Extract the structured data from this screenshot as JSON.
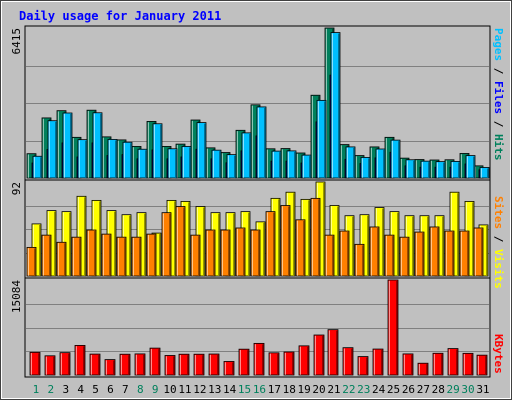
{
  "chart_data": [
    {
      "type": "bar",
      "title": "Daily usage for January 2011",
      "ymax_label": "6415",
      "ylim": [
        0,
        6415
      ],
      "legend": [
        {
          "text": "Pages",
          "color": "#00c0ff"
        },
        {
          "text": "Files",
          "color": "#0000ff"
        },
        {
          "text": "Hits",
          "color": "#00805c"
        }
      ],
      "legend_sep": "/",
      "categories": [
        "1",
        "2",
        "3",
        "4",
        "5",
        "6",
        "7",
        "8",
        "9",
        "10",
        "11",
        "12",
        "13",
        "14",
        "15",
        "16",
        "17",
        "18",
        "19",
        "20",
        "21",
        "22",
        "23",
        "24",
        "25",
        "26",
        "27",
        "28",
        "29",
        "30",
        "31"
      ],
      "weekend_days": [
        "1",
        "2",
        "8",
        "9",
        "15",
        "16",
        "22",
        "23",
        "29",
        "30"
      ],
      "series": [
        {
          "name": "Hits",
          "color": "#00805c",
          "values": [
            1040,
            2570,
            2880,
            1740,
            2900,
            1760,
            1630,
            1350,
            2420,
            1350,
            1450,
            2480,
            1290,
            1090,
            2040,
            3130,
            1250,
            1260,
            1070,
            3540,
            6415,
            1430,
            960,
            1330,
            1740,
            850,
            790,
            770,
            780,
            1050,
            520
          ]
        },
        {
          "name": "Files",
          "color": "#0000ff",
          "values": [
            640,
            1220,
            1500,
            900,
            1500,
            960,
            1000,
            820,
            1200,
            820,
            900,
            1230,
            820,
            650,
            1160,
            1800,
            720,
            720,
            640,
            2400,
            4400,
            800,
            620,
            860,
            1100,
            520,
            460,
            460,
            460,
            600,
            350
          ]
        },
        {
          "name": "Pages",
          "color": "#00c0ff",
          "values": [
            930,
            2450,
            2780,
            1640,
            2790,
            1650,
            1530,
            1230,
            2320,
            1250,
            1350,
            2370,
            1190,
            1000,
            1930,
            3040,
            1150,
            1160,
            980,
            3320,
            6220,
            1330,
            880,
            1240,
            1620,
            780,
            720,
            700,
            710,
            960,
            450
          ]
        }
      ]
    },
    {
      "type": "bar",
      "ymax_label": "92",
      "ylim": [
        0,
        92
      ],
      "legend": [
        {
          "text": "Sites",
          "color": "#ff8000"
        },
        {
          "text": "Visits",
          "color": "#ffff00"
        }
      ],
      "legend_sep": "/",
      "categories": [
        "1",
        "2",
        "3",
        "4",
        "5",
        "6",
        "7",
        "8",
        "9",
        "10",
        "11",
        "12",
        "13",
        "14",
        "15",
        "16",
        "17",
        "18",
        "19",
        "20",
        "21",
        "22",
        "23",
        "24",
        "25",
        "26",
        "27",
        "28",
        "29",
        "30",
        "31"
      ],
      "series": [
        {
          "name": "Visits",
          "color": "#ffff00",
          "values": [
            51,
            64,
            63,
            78,
            74,
            64,
            60,
            62,
            42,
            74,
            73,
            68,
            62,
            62,
            63,
            53,
            76,
            82,
            75,
            92,
            69,
            59,
            60,
            67,
            63,
            59,
            59,
            59,
            82,
            73,
            50
          ]
        },
        {
          "name": "Sites",
          "color": "#ff8000",
          "values": [
            28,
            40,
            33,
            38,
            45,
            41,
            38,
            38,
            41,
            62,
            68,
            40,
            45,
            45,
            47,
            45,
            63,
            69,
            55,
            76,
            40,
            44,
            31,
            48,
            40,
            38,
            43,
            48,
            44,
            44,
            47
          ]
        }
      ]
    },
    {
      "type": "bar",
      "ymax_label": "15084",
      "ylim": [
        0,
        15084
      ],
      "legend": [
        {
          "text": "KBytes",
          "color": "#ff0000"
        }
      ],
      "legend_sep": "/",
      "categories": [
        "1",
        "2",
        "3",
        "4",
        "5",
        "6",
        "7",
        "8",
        "9",
        "10",
        "11",
        "12",
        "13",
        "14",
        "15",
        "16",
        "17",
        "18",
        "19",
        "20",
        "21",
        "22",
        "23",
        "24",
        "25",
        "26",
        "27",
        "28",
        "29",
        "30",
        "31"
      ],
      "series": [
        {
          "name": "KBytes",
          "color": "#ff0000",
          "values": [
            3600,
            3050,
            3550,
            4700,
            3320,
            2450,
            3300,
            3350,
            4270,
            3100,
            3300,
            3300,
            3330,
            2150,
            4100,
            5020,
            3520,
            3650,
            4630,
            6350,
            7200,
            4340,
            2930,
            4120,
            15084,
            3350,
            1870,
            3450,
            4200,
            3440,
            3150
          ]
        }
      ]
    }
  ]
}
